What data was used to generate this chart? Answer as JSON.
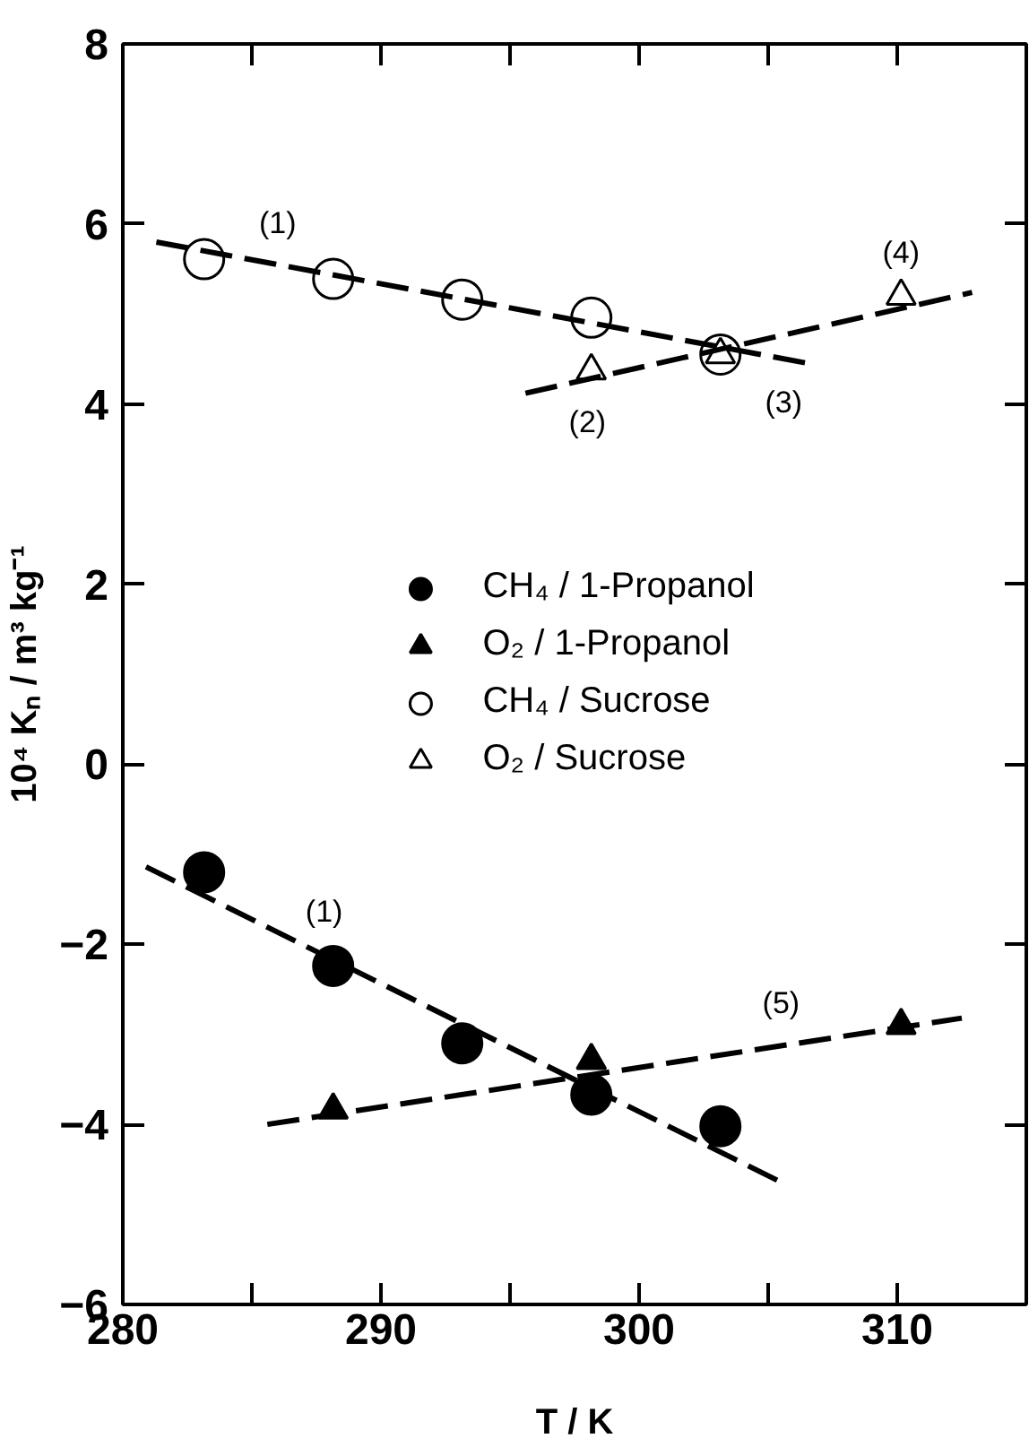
{
  "chart_data": {
    "type": "scatter",
    "xlabel": "T / K",
    "ylabel": "10⁴ Kₙ / m³ kg⁻¹",
    "xlim": [
      280,
      315
    ],
    "ylim": [
      -6,
      8
    ],
    "xticks": [
      280,
      {
        "value": 285,
        "label": null
      },
      290,
      {
        "value": 295,
        "label": null
      },
      300,
      {
        "value": 305,
        "label": null
      },
      310
    ],
    "yticks": [
      -6,
      -4,
      -2,
      0,
      2,
      4,
      6,
      8
    ],
    "grid": false,
    "legend": "center",
    "series": [
      {
        "name": "CH₄ / 1-Propanol",
        "color": "#000000",
        "marker": "circle",
        "x": [
          283.15,
          288.15,
          293.15,
          298.15,
          303.15
        ],
        "values": [
          -1.2,
          -2.24,
          -3.1,
          -3.67,
          -4.02
        ]
      },
      {
        "name": "O₂ / 1-Propanol",
        "color": "#000000",
        "marker": "triangle",
        "x": [
          288.15,
          298.15,
          310.15
        ],
        "values": [
          -3.84,
          -3.29,
          -2.9
        ]
      },
      {
        "name": "CH₄ / Sucrose",
        "color": "#ffffff",
        "marker": "circle",
        "x": [
          283.15,
          288.15,
          293.15,
          298.15,
          303.15
        ],
        "values": [
          5.61,
          5.39,
          5.16,
          4.96,
          4.55
        ]
      },
      {
        "name": "O₂ / Sucrose",
        "color": "#ffffff",
        "marker": "triangle",
        "x": [
          298.15,
          303.15,
          310.15
        ],
        "values": [
          4.37,
          4.55,
          5.2
        ]
      },
      {
        "type": "line",
        "color": "#000000",
        "line_style": "dashed",
        "x": [
          281.3,
          306.6
        ],
        "values": [
          5.8,
          4.45
        ]
      },
      {
        "type": "line",
        "color": "#000000",
        "line_style": "dashed",
        "x": [
          295.6,
          312.9
        ],
        "values": [
          4.12,
          5.24
        ]
      },
      {
        "type": "line",
        "color": "#000000",
        "line_style": "dashed",
        "x": [
          280.9,
          305.7
        ],
        "values": [
          -1.14,
          -4.67
        ]
      },
      {
        "type": "line",
        "color": "#000000",
        "line_style": "dashed",
        "x": [
          285.6,
          312.5
        ],
        "values": [
          -4.0,
          -2.82
        ]
      }
    ],
    "annotations": [
      {
        "text": "(1)",
        "x": 286.0,
        "y": 5.53
      },
      {
        "text": "(2)",
        "x": 298.0,
        "y": 4.28
      },
      {
        "text": "(3)",
        "x": 305.6,
        "y": 4.5
      },
      {
        "text": "(4)",
        "x": 310.15,
        "y": 5.2
      },
      {
        "text": "(1)",
        "x": 287.8,
        "y": -2.12
      },
      {
        "text": "(5)",
        "x": 305.5,
        "y": -3.13
      }
    ]
  }
}
